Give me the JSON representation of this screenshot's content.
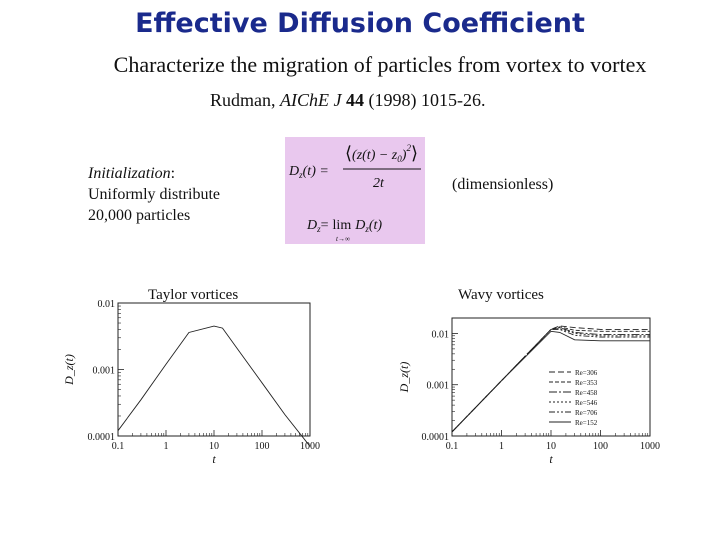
{
  "slide": {
    "title": "Effective Diffusion Coefficient",
    "subtitle": "Characterize the migration of particles from vortex to vortex",
    "reference": {
      "author": "Rudman, ",
      "journal": "AIChE J",
      "volume": "44",
      "rest": " (1998) 1015-26."
    },
    "init": {
      "heading": "Initialization",
      "colon": ":",
      "line2": "Uniformly distribute",
      "line3": "20,000 particles"
    },
    "formula": {
      "line1_lhs": "D",
      "line1_sub": "z",
      "line1_arg": "(t) =",
      "numerator": "(z(t) − z",
      "num_sub": "0",
      "num_close": ")",
      "num_sup": "2",
      "denominator": "2t",
      "line2_lhs": "D",
      "line2_sub": "z",
      "line2_eq": "=",
      "lim": "lim",
      "lim_sub": "t→∞",
      "line2_rhs": "D",
      "line2_rhs_sub": "z",
      "line2_rhs_arg": "(t)"
    },
    "dimensionless": "(dimensionless)",
    "plot_labels": {
      "taylor": "Taylor vortices",
      "wavy": "Wavy vortices"
    }
  },
  "chart_data": [
    {
      "type": "line",
      "title": "Taylor vortices",
      "xlabel": "t",
      "ylabel": "D_z(t)",
      "xscale": "log",
      "yscale": "log",
      "xlim": [
        0.1,
        1000
      ],
      "ylim": [
        0.0001,
        0.01
      ],
      "x_ticks": [
        "0.1",
        "1",
        "10",
        "100",
        "1000"
      ],
      "y_ticks": [
        "0.01",
        "0.001",
        "0.0001"
      ],
      "series": [
        {
          "x": [
            0.1,
            0.3,
            1,
            3,
            10,
            15,
            30,
            100,
            300,
            1000
          ],
          "y": [
            0.00012,
            0.00035,
            0.0012,
            0.0036,
            0.0045,
            0.0042,
            0.0021,
            0.00063,
            0.00021,
            7e-05
          ]
        }
      ]
    },
    {
      "type": "line",
      "title": "Wavy vortices",
      "xlabel": "t",
      "ylabel": "D_z(t)",
      "xscale": "log",
      "yscale": "log",
      "xlim": [
        0.1,
        1000
      ],
      "ylim": [
        0.0001,
        0.02
      ],
      "x_ticks": [
        "0.1",
        "1",
        "10",
        "100",
        "1000"
      ],
      "y_ticks": [
        "0.01",
        "0.001",
        "0.0001"
      ],
      "legend_position": "right",
      "series": [
        {
          "name": "Re=306",
          "x": [
            0.1,
            1,
            10,
            15,
            30,
            100,
            1000
          ],
          "y": [
            0.00012,
            0.0012,
            0.012,
            0.014,
            0.013,
            0.012,
            0.012
          ]
        },
        {
          "name": "Re=353",
          "x": [
            0.1,
            1,
            10,
            15,
            30,
            100,
            1000
          ],
          "y": [
            0.00012,
            0.0012,
            0.012,
            0.0135,
            0.0115,
            0.011,
            0.011
          ]
        },
        {
          "name": "Re=458",
          "x": [
            0.1,
            1,
            10,
            15,
            30,
            100,
            1000
          ],
          "y": [
            0.00012,
            0.0012,
            0.012,
            0.013,
            0.0105,
            0.0095,
            0.0095
          ]
        },
        {
          "name": "Re=546",
          "x": [
            0.1,
            1,
            10,
            15,
            30,
            100,
            1000
          ],
          "y": [
            0.00012,
            0.0012,
            0.012,
            0.0125,
            0.01,
            0.009,
            0.009
          ]
        },
        {
          "name": "Re=706",
          "x": [
            0.1,
            1,
            10,
            15,
            30,
            100,
            1000
          ],
          "y": [
            0.00012,
            0.0012,
            0.012,
            0.012,
            0.0092,
            0.0085,
            0.0085
          ]
        },
        {
          "name": "Re=152",
          "x": [
            0.1,
            1,
            10,
            15,
            30,
            100,
            1000
          ],
          "y": [
            0.00012,
            0.0012,
            0.011,
            0.0105,
            0.0075,
            0.0072,
            0.0072
          ]
        }
      ]
    }
  ]
}
